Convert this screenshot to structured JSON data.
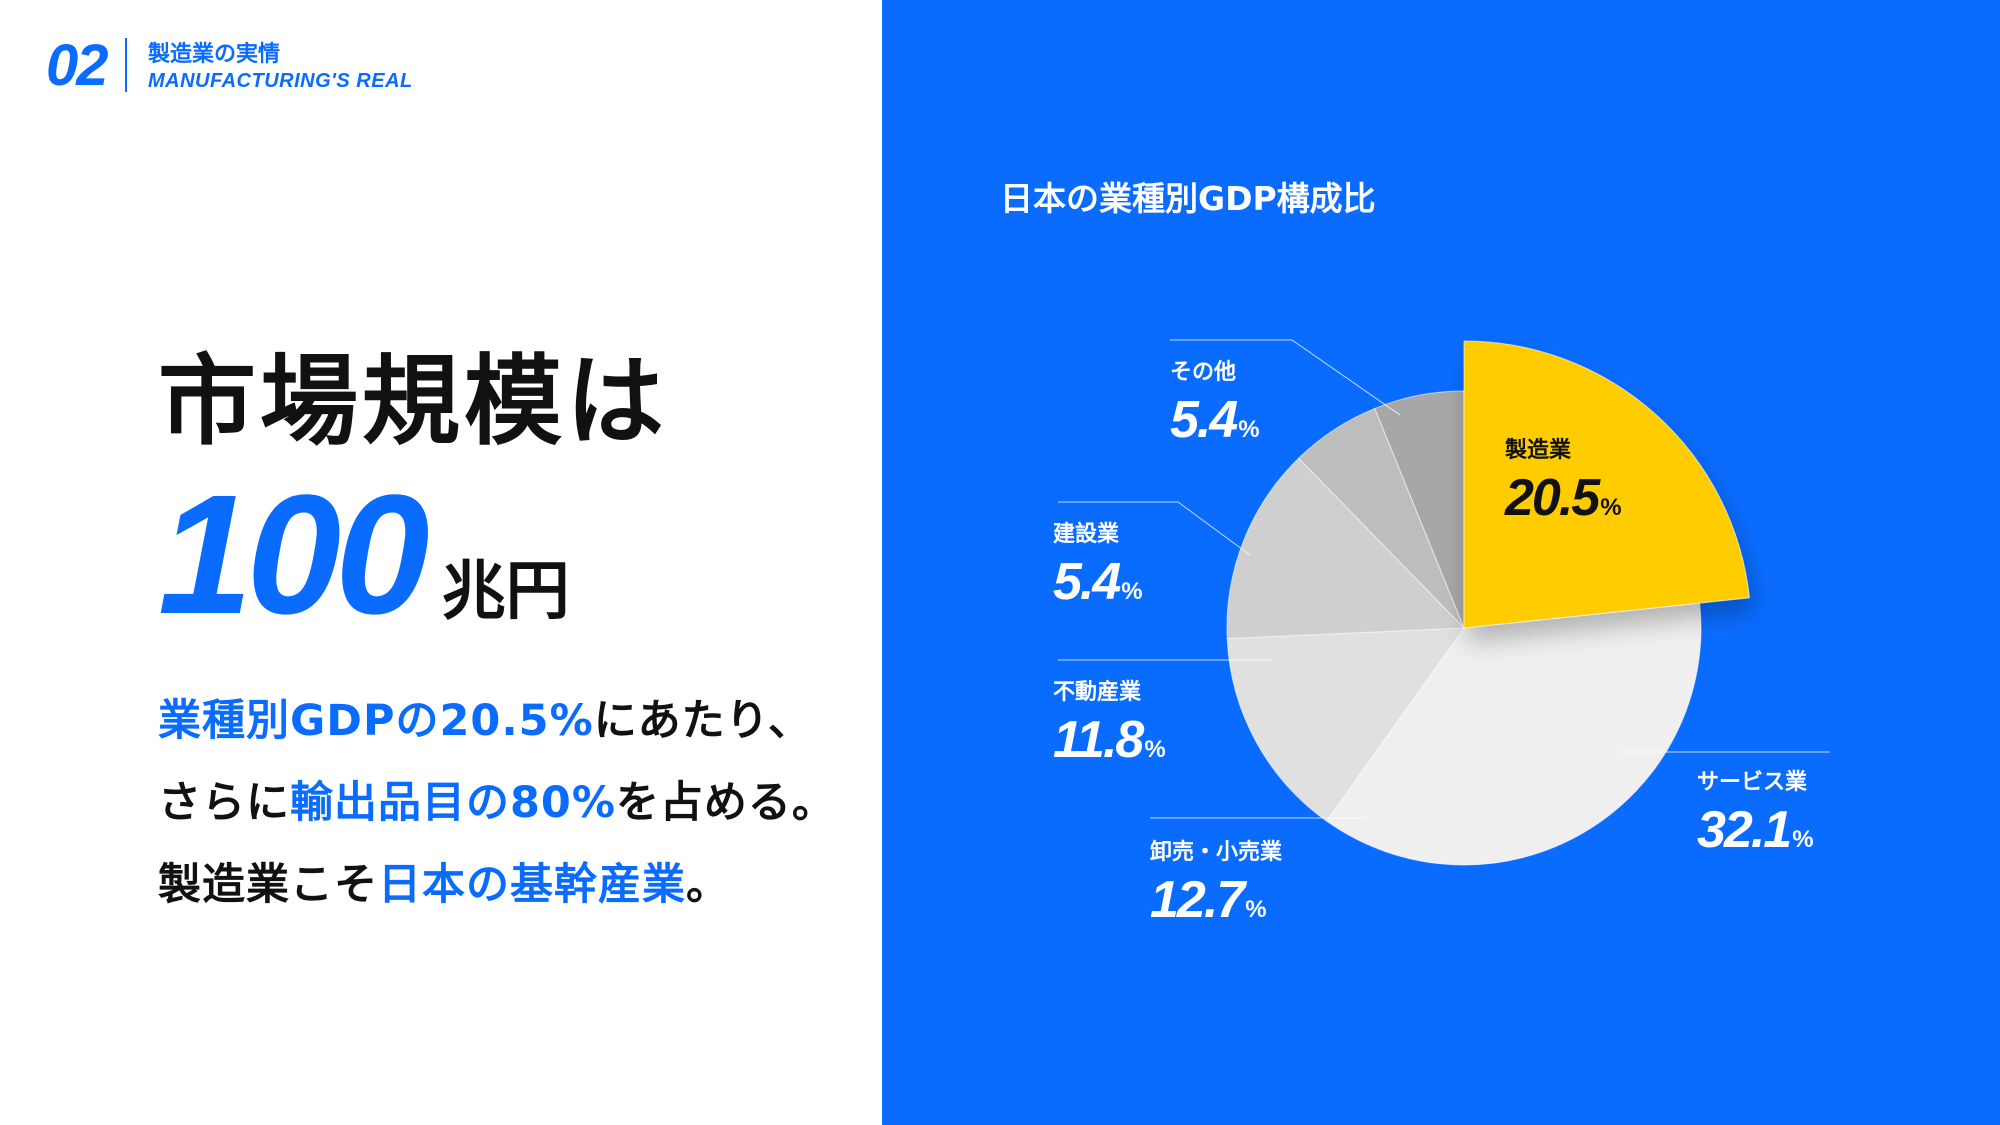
{
  "section": {
    "number": "02",
    "title_jp": "製造業の実情",
    "title_en": "MANUFACTURING'S REAL"
  },
  "headline": "市場規模は",
  "market": {
    "value": "100",
    "unit": "兆円"
  },
  "paragraph": {
    "line1_a": "業種別GDPの20.5%",
    "line1_b": "にあたり、",
    "line2_a": "さらに",
    "line2_b": "輸出品目の80%",
    "line2_c": "を占める。",
    "line3_a": "製造業こそ",
    "line3_b": "日本の基幹産業",
    "line3_c": "。"
  },
  "colors": {
    "accent": "#0a6cff",
    "highlight": "#ffcc00",
    "text": "#111111"
  },
  "chart_data": {
    "type": "pie",
    "title": "日本の業種別GDP構成比",
    "unit": "%",
    "slices": [
      {
        "name": "製造業",
        "value": 20.5,
        "color": "#ffcc00"
      },
      {
        "name": "サービス業",
        "value": 32.1,
        "color": "#efefef"
      },
      {
        "name": "卸売・小売業",
        "value": 12.7,
        "color": "#e0e0e0"
      },
      {
        "name": "不動産業",
        "value": 11.8,
        "color": "#cfcfcf"
      },
      {
        "name": "建設業",
        "value": 5.4,
        "color": "#bdbdbd"
      },
      {
        "name": "その他",
        "value": 5.4,
        "color": "#a7a7a7"
      }
    ],
    "labels": {
      "manufacturing": {
        "name": "製造業",
        "value": "20.5"
      },
      "service": {
        "name": "サービス業",
        "value": "32.1"
      },
      "wholesale": {
        "name": "卸売・小売業",
        "value": "12.7"
      },
      "realestate": {
        "name": "不動産業",
        "value": "11.8"
      },
      "construction": {
        "name": "建設業",
        "value": "5.4"
      },
      "other": {
        "name": "その他",
        "value": "5.4"
      },
      "percent_sign": "%"
    }
  }
}
